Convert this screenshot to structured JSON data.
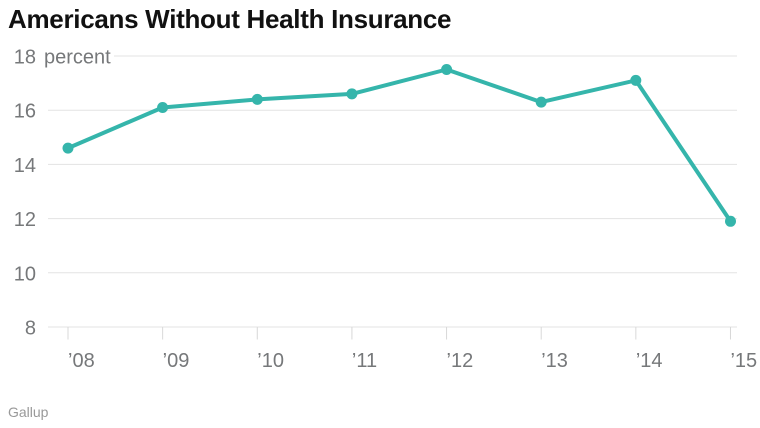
{
  "title": "Americans Without Health Insurance",
  "source": "Gallup",
  "colors": {
    "line": "#35b5ab",
    "grid": "#e3e3e3",
    "tick": "#d8d8d8",
    "axis_text": "#76787a",
    "title_text": "#111111",
    "source_text": "#999999",
    "background": "#ffffff"
  },
  "chart_data": {
    "type": "line",
    "title": "Americans Without Health Insurance",
    "categories": [
      "’08",
      "’09",
      "’10",
      "’11",
      "’12",
      "’13",
      "’14",
      "’15"
    ],
    "values": [
      14.6,
      16.1,
      16.4,
      16.6,
      17.5,
      16.3,
      17.1,
      11.9
    ],
    "xlabel": "",
    "ylabel": "percent",
    "ylim": [
      8,
      18
    ],
    "yticks": [
      8,
      10,
      12,
      14,
      16,
      18
    ],
    "y_top_tick_suffix": "percent",
    "grid": true,
    "legend": "none",
    "line_color": "#35b5ab",
    "marker": "circle",
    "source": "Gallup"
  }
}
